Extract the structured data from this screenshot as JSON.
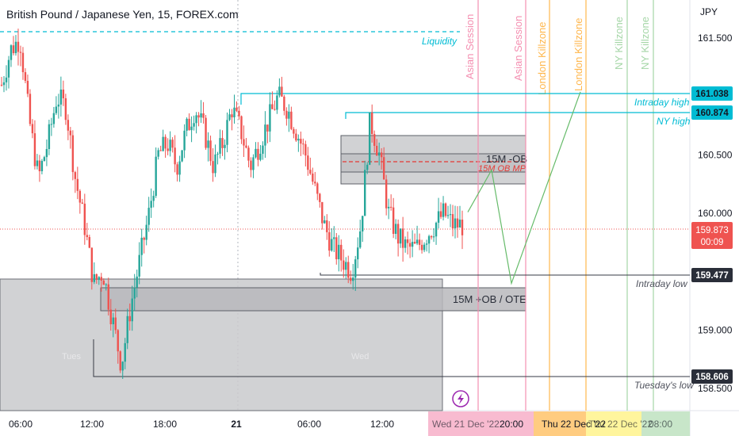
{
  "title": "British Pound / Japanese Yen, 15, FOREX.com",
  "currency": "JPY",
  "colors": {
    "up": "#26a69a",
    "down": "#ef5350",
    "teal": "#00bcd4",
    "grey_zone": "#c9cacc",
    "lightning": "#9c27b0"
  },
  "y_ticks": [
    "161.500",
    "161.000",
    "160.500",
    "160.000",
    "159.000",
    "158.500"
  ],
  "x_ticks": [
    "06:00",
    "12:00",
    "18:00",
    "21",
    "06:00",
    "12:00",
    "18:00"
  ],
  "badges": {
    "intraday_high": "161.038",
    "ny_high": "160.874",
    "last_price": "159.873",
    "countdown": "00:09",
    "intraday_low": "159.477",
    "tuesdays_low": "158.606"
  },
  "labels": {
    "liquidity": "Liquidity",
    "intraday_high": "Intraday high",
    "ny_high": "NY high",
    "intraday_low": "Intraday low",
    "tuesdays_low": "Tuesday's low",
    "ob_upper": "15M -OB",
    "ob_mp": "15M OB MP",
    "ob_lower": "15M +OB / OTE",
    "tues": "Tues",
    "wed": "Wed"
  },
  "sessions": [
    {
      "label": "Asian Session",
      "color": "#f48fb1"
    },
    {
      "label": "Asian Session",
      "color": "#f48fb1"
    },
    {
      "label": "London Killzone",
      "color": "#ffb74d"
    },
    {
      "label": "London Killzone",
      "color": "#ffb74d"
    },
    {
      "label": "NY Killzone",
      "color": "#a5d6a7"
    },
    {
      "label": "NY Killzone",
      "color": "#a5d6a7"
    }
  ],
  "bottom_labels": [
    {
      "text": "Wed 21 Dec '22",
      "color": "#f8bbd0"
    },
    {
      "text": "20:00",
      "color": "#f8bbd0"
    },
    {
      "text": "Thu 22 Dec '22",
      "color": "#ffcc80"
    },
    {
      "text": "Thu 22 Dec '22",
      "color": "#fff59d"
    },
    {
      "text": "08:00",
      "color": "#c8e6c9"
    }
  ],
  "chart_data": {
    "type": "candlestick",
    "title": "British Pound / Japanese Yen, 15, FOREX.com",
    "x_ticks": [
      "06:00",
      "12:00",
      "18:00",
      "21",
      "06:00",
      "12:00",
      "18:00"
    ],
    "y_ticks": [
      161.5,
      161.0,
      160.5,
      160.0,
      159.0,
      158.5
    ],
    "ylim": [
      158.35,
      161.8
    ],
    "ohlc_path": [
      161.1,
      161.4,
      161.5,
      160.8,
      160.3,
      160.6,
      161.0,
      160.9,
      160.3,
      159.9,
      159.4,
      159.5,
      159.1,
      158.7,
      159.2,
      159.6,
      160.0,
      160.5,
      160.6,
      160.4,
      160.7,
      160.9,
      160.7,
      160.4,
      160.6,
      160.9,
      160.7,
      160.4,
      160.6,
      160.8,
      161.0,
      160.9,
      160.7,
      160.5,
      160.2,
      159.9,
      159.7,
      159.6,
      159.5,
      159.9,
      160.8,
      160.5,
      160.0,
      159.8,
      159.7,
      159.7,
      159.8,
      159.9,
      160.0,
      159.9,
      159.9
    ],
    "levels": [
      {
        "name": "Liquidity",
        "value": 161.5
      },
      {
        "name": "Intraday high",
        "value": 161.038
      },
      {
        "name": "NY high",
        "value": 160.874
      },
      {
        "name": "Intraday low",
        "value": 159.477
      },
      {
        "name": "Tuesday's low",
        "value": 158.606
      },
      {
        "name": "last price",
        "value": 159.873
      }
    ],
    "zones": [
      {
        "name": "15M -OB",
        "low": 160.32,
        "high": 160.69
      },
      {
        "name": "15M OB MP",
        "value": 160.46
      },
      {
        "name": "15M +OB / OTE",
        "low": 159.18,
        "high": 159.39
      }
    ],
    "projection": [
      160.01,
      160.37,
      159.4,
      161.04
    ]
  }
}
